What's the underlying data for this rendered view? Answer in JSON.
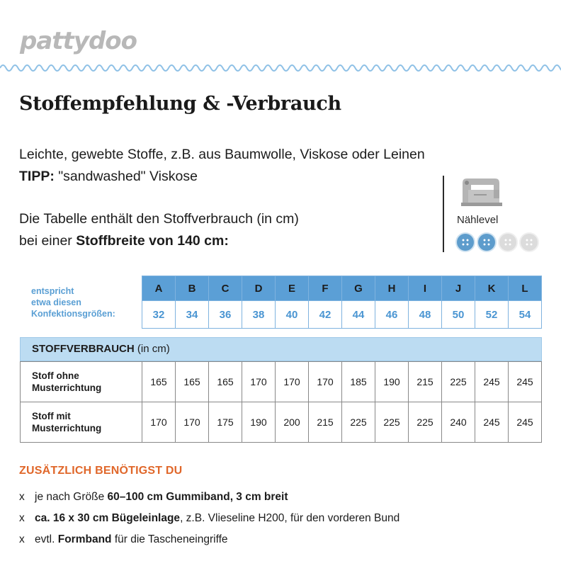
{
  "brand": {
    "logo_text": "pattydoo"
  },
  "heading": {
    "title": "Stoffempfehlung & -Verbrauch"
  },
  "intro": {
    "line1": "Leichte, gewebte Stoffe, z.B. aus Baumwolle, Viskose oder Leinen",
    "tip_label": "TIPP:",
    "tip_text": " \"sandwashed\" Viskose"
  },
  "table_intro": {
    "line1": "Die Tabelle enthält den Stoffverbrauch (in cm)",
    "line2_prefix": "bei einer ",
    "line2_bold": "Stoffbreite von 140 cm:"
  },
  "sewing_level": {
    "label": "Nählevel",
    "icon": "sewing-machine-icon",
    "level": 2,
    "max": 4,
    "colors": {
      "on": "#5d9ccc",
      "off": "#dcdcdc"
    }
  },
  "sizes": {
    "label_lines": [
      "entspricht",
      "etwa diesen",
      "Konfektionsgrößen:"
    ],
    "letters": [
      "A",
      "B",
      "C",
      "D",
      "E",
      "F",
      "G",
      "H",
      "I",
      "J",
      "K",
      "L"
    ],
    "numbers": [
      "32",
      "34",
      "36",
      "38",
      "40",
      "42",
      "44",
      "46",
      "48",
      "50",
      "52",
      "54"
    ]
  },
  "consumption": {
    "header_bold": "STOFFVERBRAUCH",
    "header_unit": " (in cm)",
    "rows": [
      {
        "label_lines": [
          "Stoff ohne",
          "Musterrichtung"
        ],
        "values": [
          "165",
          "165",
          "165",
          "170",
          "170",
          "170",
          "185",
          "190",
          "215",
          "225",
          "245",
          "245"
        ]
      },
      {
        "label_lines": [
          "Stoff mit",
          "Musterrichtung"
        ],
        "values": [
          "170",
          "170",
          "175",
          "190",
          "200",
          "215",
          "225",
          "225",
          "225",
          "240",
          "245",
          "245"
        ]
      }
    ]
  },
  "extras": {
    "title": "ZUSÄTZLICH BENÖTIGST DU",
    "bullet": "x",
    "items": [
      {
        "pre": "je nach Größe ",
        "bold": "60–100 cm Gummiband, 3 cm breit",
        "post": ""
      },
      {
        "pre": "",
        "bold": "ca. 16 x 30 cm Bügeleinlage",
        "post": ", z.B. Vlieseline H200,  für den vorderen Bund"
      },
      {
        "pre": "evtl. ",
        "bold": "Formband",
        "post": " für die Tascheneingriffe"
      }
    ]
  },
  "colors": {
    "accent_blue": "#5b9fd6",
    "light_blue": "#bcdcf2",
    "orange": "#e0672a"
  }
}
